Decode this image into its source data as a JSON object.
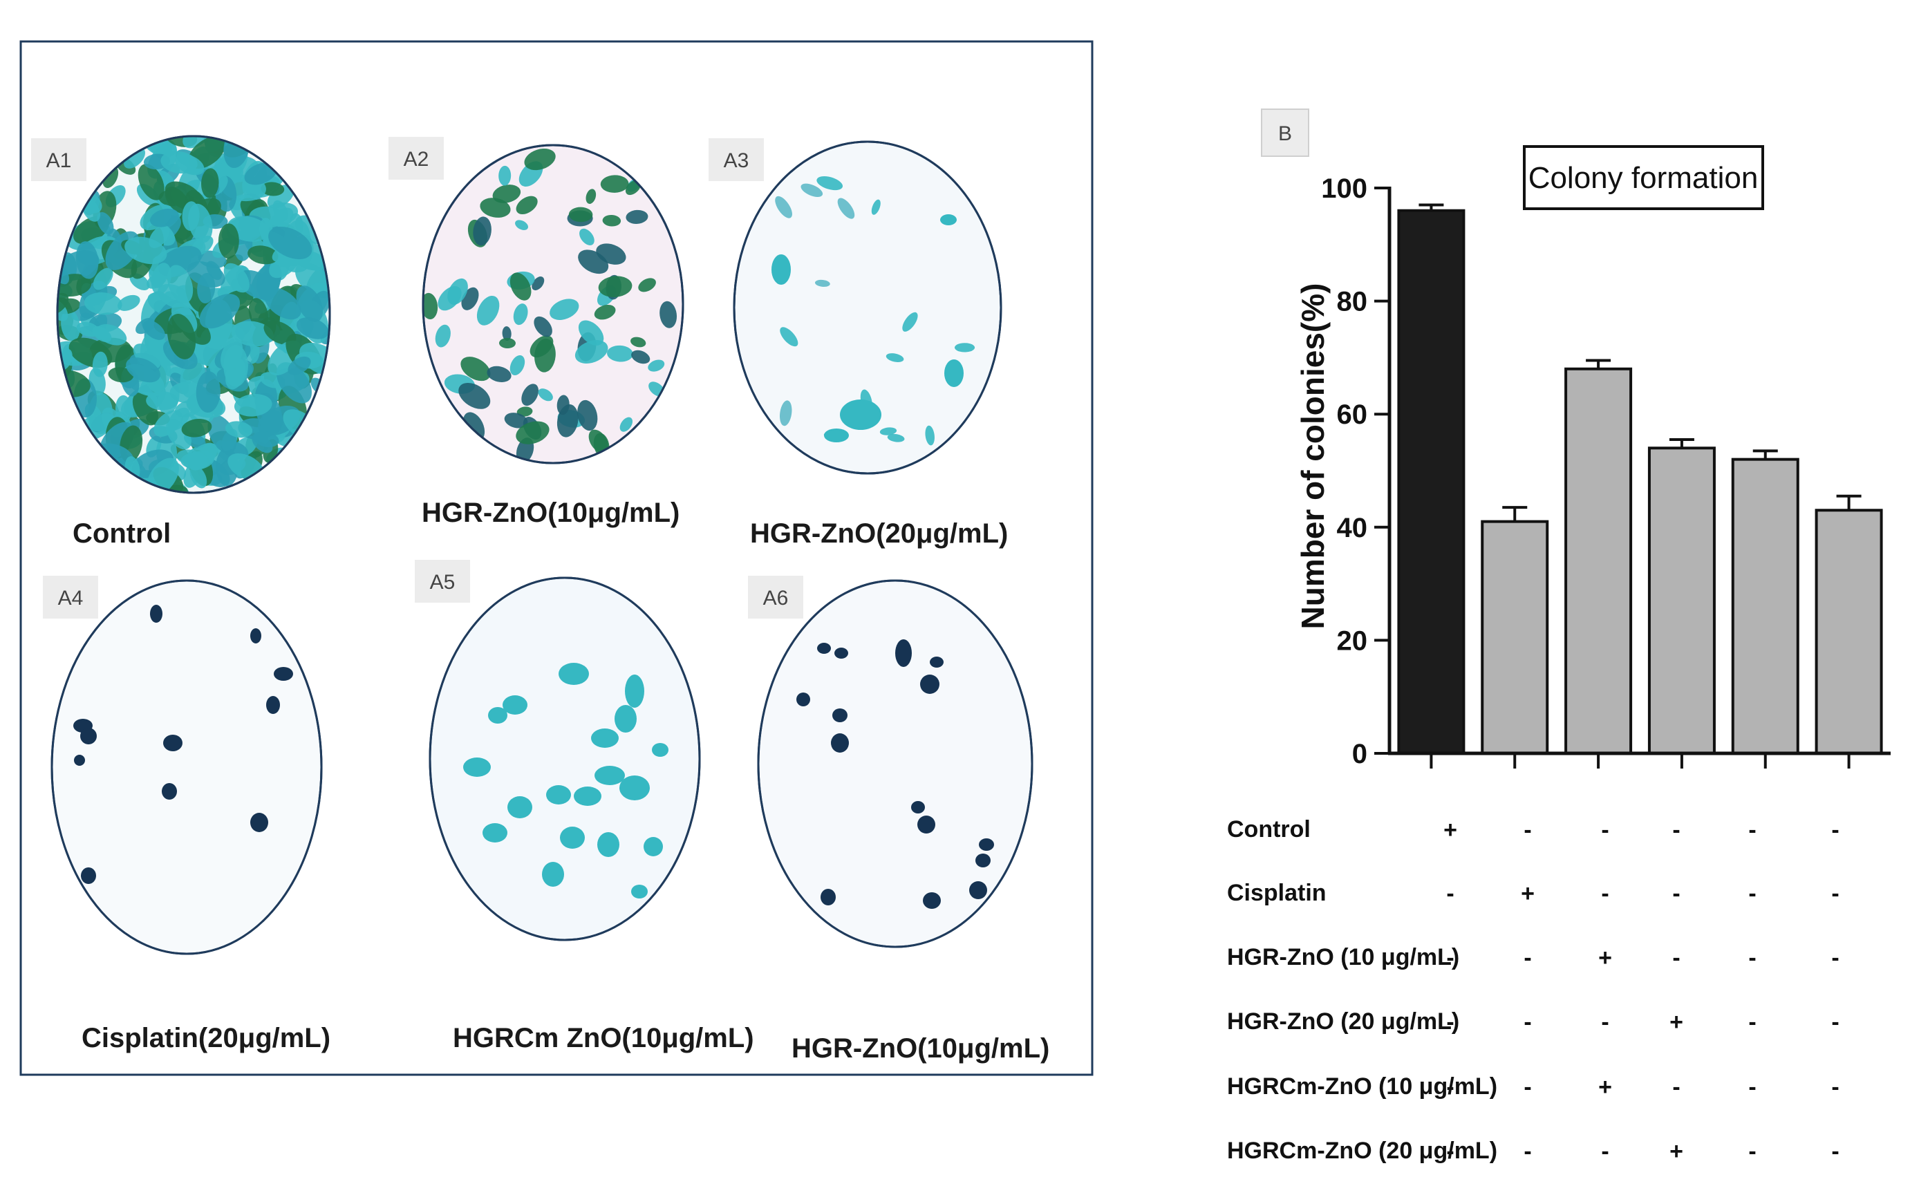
{
  "panel_a": {
    "dishes": [
      {
        "tag": "A1",
        "label": "Control"
      },
      {
        "tag": "A2",
        "label": "HGR-ZnO(10μg/mL)"
      },
      {
        "tag": "A3",
        "label": "HGR-ZnO(20μg/mL)"
      },
      {
        "tag": "A4",
        "label": "Cisplatin(20μg/mL)"
      },
      {
        "tag": "A5",
        "label": "HGRCm ZnO(10μg/mL)"
      },
      {
        "tag": "A6",
        "label": "HGR-ZnO(10μg/mL)"
      }
    ]
  },
  "panel_b_tag": "B",
  "chart_data": {
    "type": "bar",
    "title": "Colony formation",
    "xlabel": "",
    "ylabel": "Number of colonies(%)",
    "ylim": [
      0,
      100
    ],
    "yticks": [
      0,
      20,
      40,
      60,
      80,
      100
    ],
    "categories": [
      "Control",
      "Cisplatin",
      "HGR-ZnO (10 μg/mL)",
      "HGR-ZnO (20 μg/mL)",
      "HGRCm-ZnO (10 μg/mL)",
      "HGRCm-ZnO (20 μg/mL)"
    ],
    "values": [
      96,
      41,
      68,
      54,
      52,
      43
    ],
    "errors": [
      1,
      2.5,
      1.5,
      1.5,
      1.5,
      2.5
    ],
    "bar_colors": [
      "#1c1c1c",
      "#b3b3b3",
      "#b3b3b3",
      "#b3b3b3",
      "#b3b3b3",
      "#b3b3b3"
    ],
    "grid": false
  },
  "treatment_table": {
    "rows": [
      {
        "label": "Control",
        "marks": [
          "+",
          "-",
          "-",
          "-",
          "-",
          "-"
        ]
      },
      {
        "label": "Cisplatin",
        "marks": [
          "-",
          "+",
          "-",
          "-",
          "-",
          "-"
        ]
      },
      {
        "label": "HGR-ZnO (10 μg/mL)",
        "marks": [
          "-",
          "-",
          "+",
          "-",
          "-",
          "-"
        ]
      },
      {
        "label": "HGR-ZnO (20 μg/mL)",
        "marks": [
          "-",
          "-",
          "-",
          "+",
          "-",
          "-"
        ]
      },
      {
        "label": "HGRCm-ZnO (10 μg/mL)",
        "marks": [
          "-",
          "-",
          "+",
          "-",
          "-",
          "-"
        ]
      },
      {
        "label": "HGRCm-ZnO (20 μg/mL)",
        "marks": [
          "-",
          "-",
          "-",
          "+",
          "-",
          "-"
        ]
      }
    ]
  },
  "colors": {
    "frame": "#1f3b5c",
    "cell_teal": "#36b8c2",
    "cell_green": "#1f7a4e",
    "cell_navy": "#1e3b5a"
  }
}
